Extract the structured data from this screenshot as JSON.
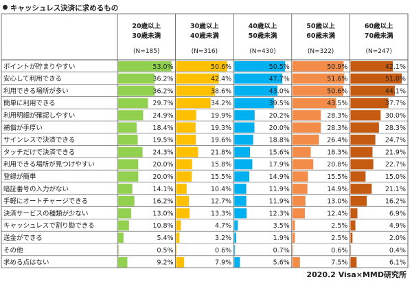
{
  "title": "キャッシュレス決済に求めるもの",
  "footer": "2020.2 Visa×MMD研究所",
  "chart_data": {
    "type": "table",
    "title": "キャッシュレス決済に求めるもの",
    "unit": "%",
    "columns": [
      {
        "age1": "20歳以上",
        "age2": "30歳未満",
        "n": "(N=185)",
        "color": "#92d050"
      },
      {
        "age1": "30歳以上",
        "age2": "40歳未満",
        "n": "(N=316)",
        "color": "#ffc000"
      },
      {
        "age1": "40歳以上",
        "age2": "50歳未満",
        "n": "(N=430)",
        "color": "#00b0f0"
      },
      {
        "age1": "50歳以上",
        "age2": "60歳未満",
        "n": "(N=322)",
        "color": "#f28c48"
      },
      {
        "age1": "60歳以上",
        "age2": "70歳未満",
        "n": "(N=247)",
        "color": "#c55a11"
      }
    ],
    "rows": [
      {
        "label": "ポイントが貯まりやすい",
        "values": [
          53.0,
          50.6,
          50.5,
          50.9,
          42.1
        ]
      },
      {
        "label": "安心して利用できる",
        "values": [
          36.2,
          42.4,
          47.7,
          51.6,
          51.0
        ]
      },
      {
        "label": "利用できる場所が多い",
        "values": [
          36.2,
          38.6,
          43.0,
          50.6,
          44.1
        ]
      },
      {
        "label": "簡単に利用できる",
        "values": [
          29.7,
          34.2,
          39.5,
          43.5,
          37.7
        ]
      },
      {
        "label": "利用明細が確認しやすい",
        "values": [
          24.9,
          19.9,
          20.2,
          28.3,
          30.0
        ]
      },
      {
        "label": "補償が手厚い",
        "values": [
          18.4,
          19.3,
          20.0,
          28.3,
          28.3
        ]
      },
      {
        "label": "サインレスで決済できる",
        "values": [
          19.5,
          19.6,
          18.8,
          26.4,
          24.7
        ]
      },
      {
        "label": "タッチだけで決済できる",
        "values": [
          24.3,
          21.8,
          15.6,
          18.3,
          21.9
        ]
      },
      {
        "label": "利用できる場所が見つけやすい",
        "values": [
          20.0,
          15.8,
          17.9,
          20.8,
          22.7
        ]
      },
      {
        "label": "登録が簡単",
        "values": [
          20.0,
          15.5,
          14.9,
          15.5,
          15.0
        ]
      },
      {
        "label": "暗証番号の入力がない",
        "values": [
          14.1,
          10.4,
          11.9,
          14.9,
          21.1
        ]
      },
      {
        "label": "手軽にオートチャージできる",
        "values": [
          16.2,
          12.7,
          11.9,
          13.0,
          16.2
        ]
      },
      {
        "label": "決済サービスの種類が少ない",
        "values": [
          13.0,
          13.3,
          12.3,
          12.4,
          6.9
        ]
      },
      {
        "label": "キャッシュレスで割り勘できる",
        "values": [
          10.8,
          4.7,
          3.5,
          2.5,
          4.9
        ]
      },
      {
        "label": "送金ができる",
        "values": [
          5.4,
          3.2,
          1.9,
          2.5,
          2.0
        ]
      },
      {
        "label": "その他",
        "values": [
          0.5,
          0.6,
          0.7,
          0.6,
          0.4
        ]
      },
      {
        "label": "求める点はない",
        "values": [
          9.2,
          7.9,
          5.6,
          7.5,
          6.1
        ]
      }
    ],
    "max_value": 55
  }
}
